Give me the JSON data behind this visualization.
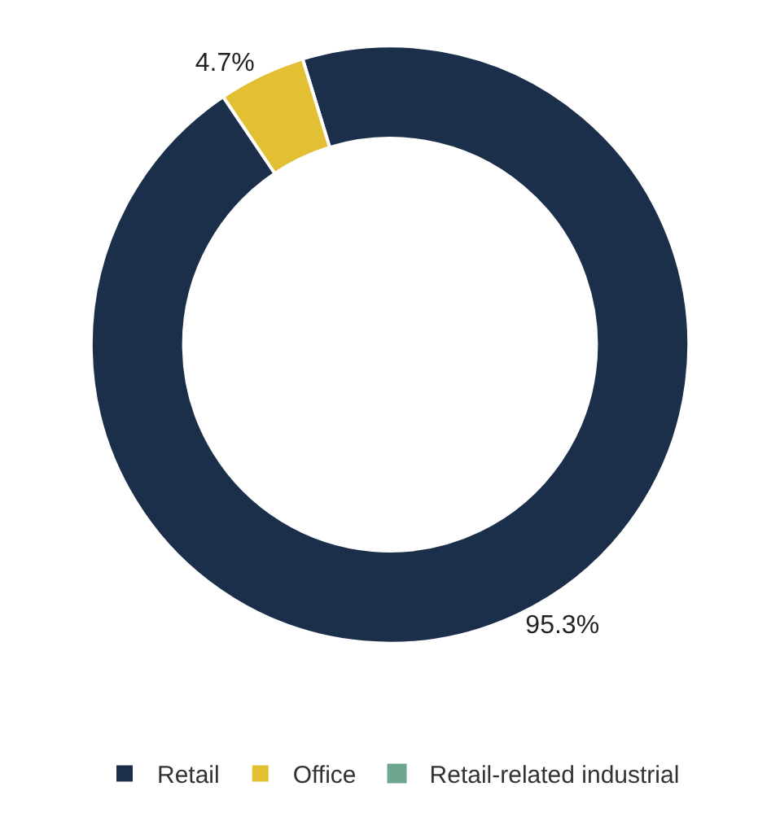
{
  "chart_data": {
    "type": "donut",
    "categories": [
      "Retail",
      "Office",
      "Retail-related industrial"
    ],
    "values": [
      95.3,
      4.7,
      0
    ],
    "colors": [
      "#1b2f4a",
      "#e3bf33",
      "#6fa78e"
    ],
    "value_labels": [
      "95.3%",
      "4.7%",
      null
    ],
    "legend": "bottom"
  }
}
